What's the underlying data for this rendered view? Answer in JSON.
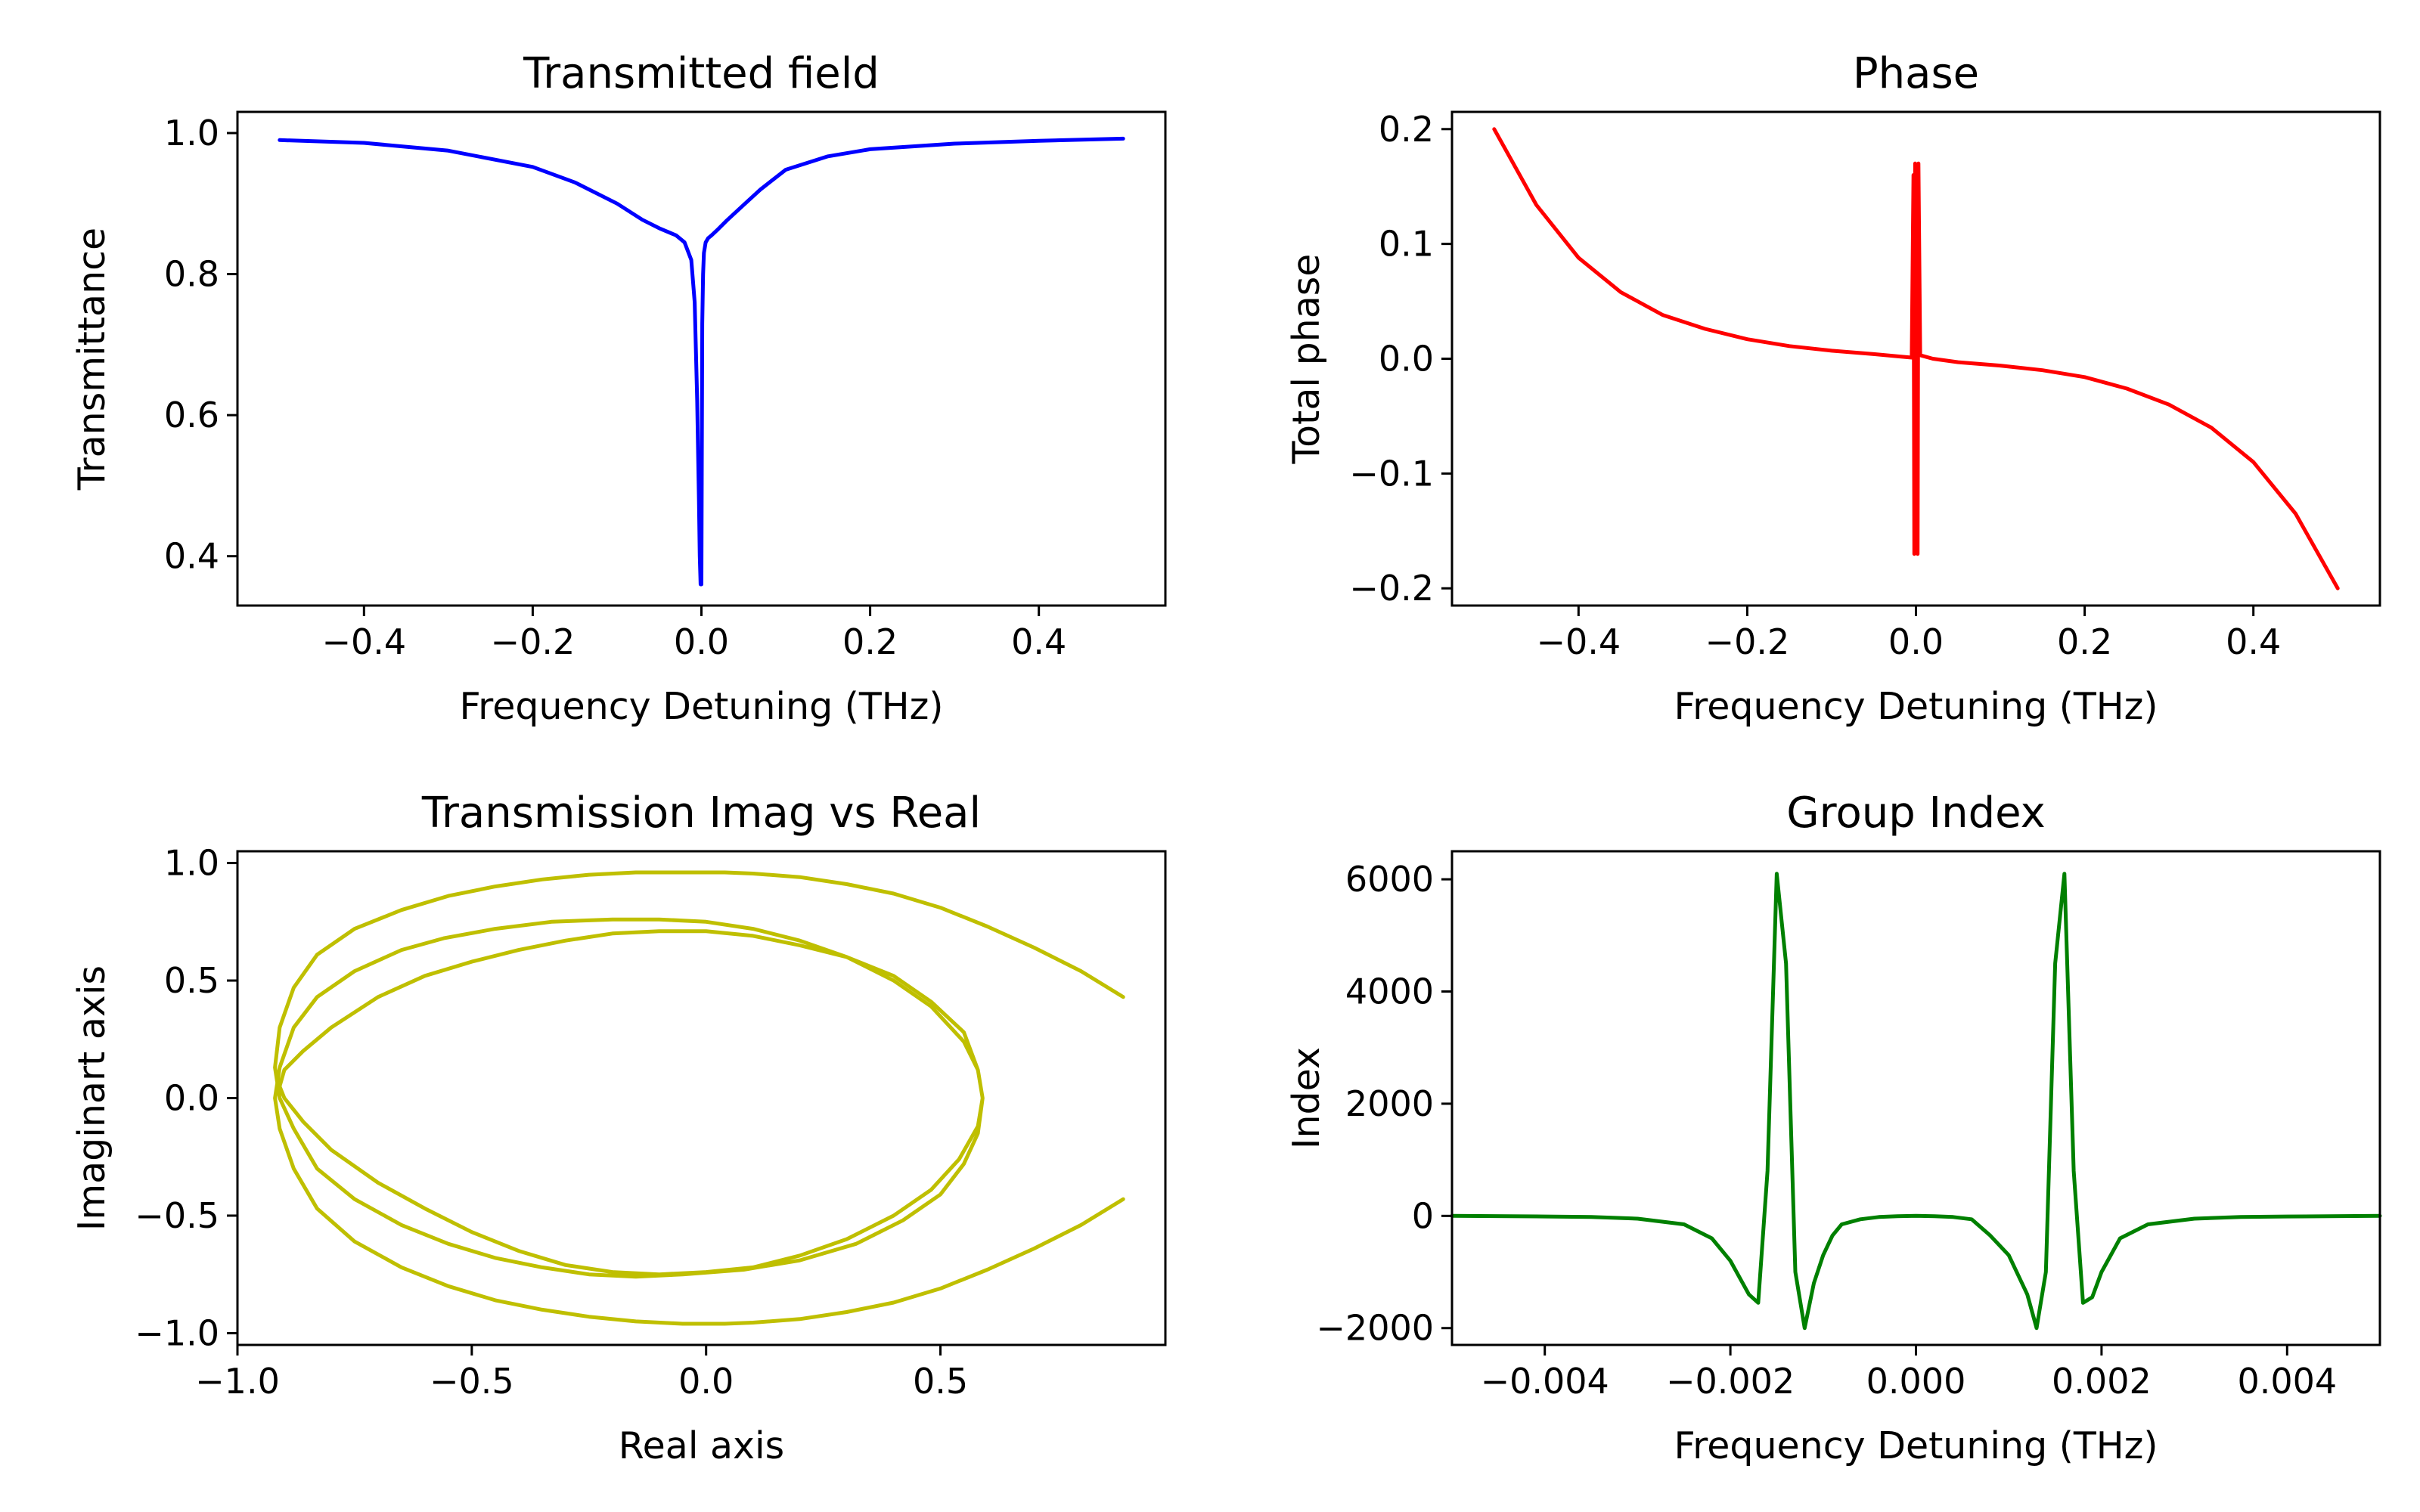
{
  "chart_data": [
    {
      "type": "line",
      "title": "Transmitted field",
      "xlabel": "Frequency Detuning (THz)",
      "ylabel": "Transmittance",
      "xlim": [
        -0.55,
        0.55
      ],
      "ylim": [
        0.33,
        1.03
      ],
      "xticks": [
        -0.4,
        -0.2,
        0.0,
        0.2,
        0.4
      ],
      "xtick_labels": [
        "−0.4",
        "−0.2",
        "0.0",
        "0.2",
        "0.4"
      ],
      "yticks": [
        0.4,
        0.6,
        0.8,
        1.0
      ],
      "ytick_labels": [
        "0.4",
        "0.6",
        "0.8",
        "1.0"
      ],
      "grid": false,
      "color": "#0000ff",
      "series": [
        {
          "x": [
            -0.5,
            -0.4,
            -0.3,
            -0.2,
            -0.15,
            -0.1,
            -0.07,
            -0.05,
            -0.03,
            -0.02,
            -0.012,
            -0.008,
            -0.005,
            -0.003,
            -0.002,
            -0.001,
            0.0,
            0.001,
            0.002,
            0.003,
            0.005,
            0.008,
            0.012,
            0.02,
            0.03,
            0.05,
            0.07,
            0.1,
            0.15,
            0.2,
            0.3,
            0.4,
            0.5
          ],
          "y": [
            0.99,
            0.986,
            0.975,
            0.952,
            0.93,
            0.9,
            0.877,
            0.865,
            0.855,
            0.845,
            0.82,
            0.76,
            0.62,
            0.48,
            0.4,
            0.36,
            0.36,
            0.73,
            0.8,
            0.83,
            0.845,
            0.851,
            0.855,
            0.864,
            0.876,
            0.898,
            0.92,
            0.948,
            0.967,
            0.977,
            0.985,
            0.989,
            0.992
          ]
        }
      ]
    },
    {
      "type": "line",
      "title": "Phase",
      "xlabel": "Frequency Detuning (THz)",
      "ylabel": "Total phase",
      "xlim": [
        -0.55,
        0.55
      ],
      "ylim": [
        -0.215,
        0.215
      ],
      "xticks": [
        -0.4,
        -0.2,
        0.0,
        0.2,
        0.4
      ],
      "xtick_labels": [
        "−0.4",
        "−0.2",
        "0.0",
        "0.2",
        "0.4"
      ],
      "yticks": [
        -0.2,
        -0.1,
        0.0,
        0.1,
        0.2
      ],
      "ytick_labels": [
        "−0.2",
        "−0.1",
        "0.0",
        "0.1",
        "0.2"
      ],
      "grid": false,
      "color": "#ff0000",
      "series": [
        {
          "x": [
            -0.5,
            -0.45,
            -0.4,
            -0.35,
            -0.3,
            -0.25,
            -0.2,
            -0.15,
            -0.1,
            -0.05,
            -0.02,
            -0.005,
            -0.003,
            -0.002,
            -0.001,
            0.0,
            0.001,
            0.002,
            0.003,
            0.005,
            0.02,
            0.05,
            0.1,
            0.15,
            0.2,
            0.25,
            0.3,
            0.35,
            0.4,
            0.45,
            0.5
          ],
          "y": [
            0.2,
            0.134,
            0.088,
            0.058,
            0.038,
            0.026,
            0.017,
            0.011,
            0.007,
            0.004,
            0.002,
            0.001,
            0.16,
            -0.17,
            0.17,
            -0.16,
            0.16,
            -0.17,
            0.17,
            0.003,
            0.0,
            -0.003,
            -0.006,
            -0.01,
            -0.016,
            -0.026,
            -0.04,
            -0.06,
            -0.09,
            -0.135,
            -0.2
          ]
        }
      ]
    },
    {
      "type": "line",
      "title": "Transmission Imag vs Real",
      "xlabel": "Real axis",
      "ylabel": "Imaginart axis",
      "xlim": [
        -1.0,
        0.98
      ],
      "ylim": [
        -1.05,
        1.05
      ],
      "xticks": [
        -1.0,
        -0.5,
        0.0,
        0.5
      ],
      "xtick_labels": [
        "−1.0",
        "−0.5",
        "0.0",
        "0.5"
      ],
      "yticks": [
        -1.0,
        -0.5,
        0.0,
        0.5,
        1.0
      ],
      "ytick_labels": [
        "−1.0",
        "−0.5",
        "0.0",
        "0.5",
        "1.0"
      ],
      "grid": false,
      "color": "#bfbf00",
      "series": [
        {
          "x": [
            0.89,
            0.8,
            0.7,
            0.6,
            0.5,
            0.4,
            0.3,
            0.2,
            0.1,
            0.04,
            -0.05,
            -0.15,
            -0.25,
            -0.35,
            -0.45,
            -0.55,
            -0.65,
            -0.75,
            -0.83,
            -0.88,
            -0.91,
            -0.92,
            -0.91,
            -0.88,
            -0.83,
            -0.75,
            -0.65,
            -0.56,
            -0.45,
            -0.33,
            -0.2,
            -0.1,
            0.0,
            0.1,
            0.2,
            0.3,
            0.4,
            0.48,
            0.55,
            0.58,
            0.59,
            0.58,
            0.54,
            0.48,
            0.4,
            0.3,
            0.2,
            0.1,
            0.0,
            -0.1,
            -0.2,
            -0.3,
            -0.4,
            -0.5,
            -0.6,
            -0.7,
            -0.8,
            -0.86,
            -0.9,
            -0.91,
            -0.9,
            -0.86,
            -0.8,
            -0.7,
            -0.6,
            -0.5,
            -0.4,
            -0.3,
            -0.2,
            -0.1,
            0.0,
            0.1,
            0.2,
            0.3,
            0.4,
            0.48,
            0.55,
            0.58,
            0.59,
            0.58,
            0.55,
            0.5,
            0.42,
            0.32,
            0.2,
            0.08,
            -0.05,
            -0.15,
            -0.25,
            -0.35,
            -0.45,
            -0.55,
            -0.65,
            -0.75,
            -0.83,
            -0.88,
            -0.91,
            -0.92,
            -0.91,
            -0.88,
            -0.83,
            -0.75,
            -0.65,
            -0.55,
            -0.45,
            -0.35,
            -0.25,
            -0.15,
            -0.05,
            0.04,
            0.1,
            0.2,
            0.3,
            0.4,
            0.5,
            0.6,
            0.7,
            0.8,
            0.89
          ],
          "y": [
            -0.43,
            -0.54,
            -0.64,
            -0.73,
            -0.81,
            -0.87,
            -0.91,
            -0.94,
            -0.955,
            -0.96,
            -0.96,
            -0.95,
            -0.93,
            -0.9,
            -0.86,
            -0.8,
            -0.72,
            -0.61,
            -0.47,
            -0.3,
            -0.13,
            0.0,
            0.13,
            0.3,
            0.43,
            0.54,
            0.63,
            0.68,
            0.72,
            0.75,
            0.76,
            0.76,
            0.75,
            0.72,
            0.67,
            0.6,
            0.5,
            0.39,
            0.24,
            0.12,
            0.0,
            -0.12,
            -0.26,
            -0.39,
            -0.5,
            -0.6,
            -0.67,
            -0.72,
            -0.74,
            -0.75,
            -0.74,
            -0.71,
            -0.65,
            -0.57,
            -0.47,
            -0.36,
            -0.22,
            -0.1,
            0.0,
            0.05,
            0.12,
            0.2,
            0.3,
            0.43,
            0.52,
            0.58,
            0.63,
            0.67,
            0.7,
            0.71,
            0.71,
            0.69,
            0.65,
            0.6,
            0.52,
            0.41,
            0.28,
            0.12,
            0.0,
            -0.15,
            -0.28,
            -0.41,
            -0.52,
            -0.62,
            -0.69,
            -0.73,
            -0.75,
            -0.76,
            -0.75,
            -0.72,
            -0.68,
            -0.62,
            -0.54,
            -0.43,
            -0.3,
            -0.13,
            0.0,
            0.13,
            0.3,
            0.47,
            0.61,
            0.72,
            0.8,
            0.86,
            0.9,
            0.93,
            0.95,
            0.96,
            0.96,
            0.96,
            0.955,
            0.94,
            0.91,
            0.87,
            0.81,
            0.73,
            0.64,
            0.54,
            0.43
          ]
        }
      ]
    },
    {
      "type": "line",
      "title": "Group Index",
      "xlabel": "Frequency Detuning (THz)",
      "ylabel": "Index",
      "xlim": [
        -0.005,
        0.005
      ],
      "ylim": [
        -2300,
        6500
      ],
      "xticks": [
        -0.004,
        -0.002,
        0.0,
        0.002,
        0.004
      ],
      "xtick_labels": [
        "−0.004",
        "−0.002",
        "0.000",
        "0.002",
        "0.004"
      ],
      "yticks": [
        -2000,
        0,
        2000,
        4000,
        6000
      ],
      "ytick_labels": [
        "−2000",
        "0",
        "2000",
        "4000",
        "6000"
      ],
      "grid": false,
      "color": "#008000",
      "series": [
        {
          "x": [
            -0.005,
            -0.004,
            -0.0035,
            -0.003,
            -0.0025,
            -0.0022,
            -0.002,
            -0.0018,
            -0.0017,
            -0.0016,
            -0.0015,
            -0.0014,
            -0.0013,
            -0.0012,
            -0.0011,
            -0.001,
            -0.0009,
            -0.0008,
            -0.0006,
            -0.0004,
            -0.0002,
            0.0,
            0.0002,
            0.0004,
            0.0006,
            0.0008,
            0.001,
            0.0012,
            0.0013,
            0.0014,
            0.0015,
            0.0016,
            0.0017,
            0.0018,
            0.0019,
            0.002,
            0.0022,
            0.0025,
            0.003,
            0.0035,
            0.004,
            0.005
          ],
          "y": [
            0,
            -10,
            -20,
            -50,
            -150,
            -400,
            -800,
            -1400,
            -1550,
            800,
            6100,
            4500,
            -1000,
            -2000,
            -1200,
            -700,
            -350,
            -150,
            -60,
            -20,
            -5,
            0,
            -5,
            -20,
            -60,
            -350,
            -700,
            -1400,
            -2000,
            -1000,
            4500,
            6100,
            800,
            -1550,
            -1450,
            -1000,
            -400,
            -150,
            -50,
            -20,
            -10,
            0
          ]
        }
      ]
    }
  ]
}
